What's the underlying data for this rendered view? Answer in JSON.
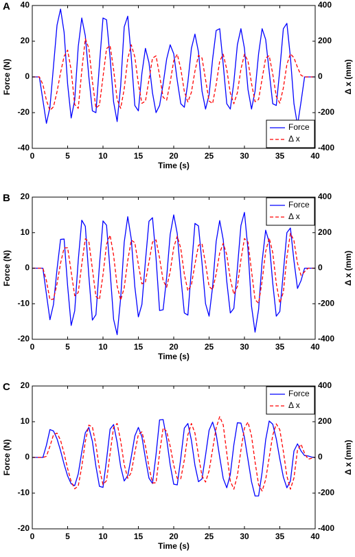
{
  "chart_data": [
    {
      "type": "line",
      "label": "A",
      "xlabel": "Time (s)",
      "ylabel": "Force (N)",
      "y2label": "Δ x (mm)",
      "xlim": [
        0,
        40
      ],
      "xticks": [
        0,
        5,
        10,
        15,
        20,
        25,
        30,
        35,
        40
      ],
      "ylim": [
        -40,
        40
      ],
      "yticks": [
        -40,
        -20,
        0,
        20,
        40
      ],
      "y2lim": [
        -400,
        400
      ],
      "y2ticks": [
        -400,
        -200,
        0,
        200,
        400
      ],
      "legend": "lower right",
      "x": [
        0,
        0.5,
        1,
        1.5,
        2,
        2.5,
        3,
        3.5,
        4,
        4.5,
        5,
        5.5,
        6,
        6.5,
        7,
        7.5,
        8,
        8.5,
        9,
        9.5,
        10,
        10.5,
        11,
        11.5,
        12,
        12.5,
        13,
        13.5,
        14,
        14.5,
        15,
        15.5,
        16,
        16.5,
        17,
        17.5,
        18,
        18.5,
        19,
        19.5,
        20,
        20.5,
        21,
        21.5,
        22,
        22.5,
        23,
        23.5,
        24,
        24.5,
        25,
        25.5,
        26,
        26.5,
        27,
        27.5,
        28,
        28.5,
        29,
        29.5,
        30,
        30.5,
        31,
        31.5,
        32,
        32.5,
        33,
        33.5,
        34,
        34.5,
        35,
        35.5,
        36,
        36.5,
        37,
        37.5,
        38,
        38.5,
        39,
        39.5,
        40
      ],
      "series": [
        {
          "name": "Force",
          "color": "#0000ff",
          "linestyle": "solid",
          "values": [
            0,
            0,
            0,
            -13,
            -26,
            -17,
            6,
            29,
            38,
            25,
            -4,
            -23,
            -13,
            17,
            33,
            23,
            0,
            -19,
            -20,
            7,
            33,
            32,
            11,
            -14,
            -25,
            -5,
            28,
            34,
            11,
            -16,
            -19,
            2,
            16,
            8,
            -9,
            -20,
            -16,
            -4,
            10,
            18,
            13,
            -2,
            -15,
            -17,
            -3,
            16,
            24,
            14,
            -8,
            -18,
            -10,
            10,
            26,
            27,
            7,
            -15,
            -18,
            -3,
            18,
            27,
            16,
            -7,
            -18,
            -8,
            13,
            27,
            21,
            3,
            -15,
            -16,
            4,
            27,
            30,
            11,
            -15,
            -27,
            -14,
            0,
            0,
            0,
            0
          ]
        },
        {
          "name": "Δ x",
          "color": "#ff0000",
          "linestyle": "dashed",
          "axis": "y2",
          "values": [
            0,
            0,
            0,
            -42,
            -131,
            -188,
            -167,
            -83,
            24,
            115,
            150,
            38,
            -155,
            -176,
            35,
            214,
            160,
            -25,
            -174,
            -158,
            0,
            158,
            176,
            41,
            -126,
            -176,
            -67,
            102,
            180,
            112,
            -37,
            -148,
            -136,
            -15,
            105,
            118,
            9,
            -114,
            -130,
            -31,
            91,
            127,
            45,
            -82,
            -140,
            -86,
            32,
            121,
            106,
            -15,
            -135,
            -149,
            -43,
            88,
            127,
            42,
            -90,
            -150,
            -88,
            43,
            127,
            89,
            -37,
            -139,
            -126,
            -10,
            106,
            119,
            17,
            -109,
            -147,
            -62,
            70,
            130,
            107,
            54,
            9,
            0,
            0,
            0,
            0
          ]
        }
      ]
    },
    {
      "type": "line",
      "label": "B",
      "xlabel": "Time (s)",
      "ylabel": "Force (N)",
      "y2label": "Δ x (mm)",
      "xlim": [
        0,
        40
      ],
      "xticks": [
        0,
        5,
        10,
        15,
        20,
        25,
        30,
        35,
        40
      ],
      "ylim": [
        -20,
        20
      ],
      "yticks": [
        -20,
        -10,
        0,
        10,
        20
      ],
      "y2lim": [
        -400,
        400
      ],
      "y2ticks": [
        -400,
        -200,
        0,
        200,
        400
      ],
      "legend": "upper right",
      "x": [
        0,
        0.5,
        1,
        1.5,
        2,
        2.5,
        3,
        3.5,
        4,
        4.5,
        5,
        5.5,
        6,
        6.5,
        7,
        7.5,
        8,
        8.5,
        9,
        9.5,
        10,
        10.5,
        11,
        11.5,
        12,
        12.5,
        13,
        13.5,
        14,
        14.5,
        15,
        15.5,
        16,
        16.5,
        17,
        17.5,
        18,
        18.5,
        19,
        19.5,
        20,
        20.5,
        21,
        21.5,
        22,
        22.5,
        23,
        23.5,
        24,
        24.5,
        25,
        25.5,
        26,
        26.5,
        27,
        27.5,
        28,
        28.5,
        29,
        29.5,
        30,
        30.5,
        31,
        31.5,
        32,
        32.5,
        33,
        33.5,
        34,
        34.5,
        35,
        35.5,
        36,
        36.5,
        37,
        37.5,
        38,
        38.5,
        39,
        39.5,
        40
      ],
      "series": [
        {
          "name": "Force",
          "color": "#0000ff",
          "linestyle": "solid",
          "values": [
            0,
            0,
            0,
            0,
            -7.3,
            -14.5,
            -10.2,
            -0.3,
            8.1,
            8.2,
            -5,
            -16.1,
            -12,
            2.2,
            13.5,
            11.8,
            -2.2,
            -14.6,
            -13.1,
            0.9,
            13.3,
            12.1,
            -0.7,
            -14.4,
            -18.7,
            -8.4,
            7.3,
            14.5,
            8.2,
            -5.2,
            -13.7,
            -10.2,
            2,
            13.2,
            14.2,
            2.9,
            -11.9,
            -11.7,
            -2.6,
            9.5,
            15,
            9.7,
            -2.4,
            -12.6,
            -13.2,
            -0.3,
            12.6,
            11.9,
            1.4,
            -10,
            -13.5,
            -5.2,
            7.5,
            13.4,
            8,
            -3.7,
            -12.6,
            -11.3,
            -0.1,
            12,
            15.7,
            5.3,
            -10.7,
            -18,
            -11.6,
            2,
            10.7,
            7.3,
            -4.2,
            -13.5,
            -12.2,
            -1.1,
            10,
            11.3,
            2.1,
            -5.7,
            -3.5,
            0,
            0,
            0,
            0
          ]
        },
        {
          "name": "Δ x",
          "color": "#ff0000",
          "linestyle": "dashed",
          "axis": "y2",
          "values": [
            0,
            0,
            0,
            0,
            -70,
            -177,
            -174,
            -88,
            28,
            114,
            115,
            -20,
            -155,
            -137,
            23,
            165,
            149,
            -5,
            -159,
            -176,
            -37,
            135,
            186,
            73,
            -100,
            -180,
            -110,
            43,
            158,
            144,
            21,
            -88,
            -77,
            35,
            147,
            159,
            57,
            -69,
            -107,
            -19,
            117,
            180,
            111,
            -34,
            -127,
            -94,
            22,
            129,
            138,
            25,
            -103,
            -121,
            -32,
            86,
            140,
            76,
            -60,
            -147,
            -102,
            47,
            167,
            147,
            -15,
            -177,
            -197,
            -72,
            94,
            170,
            88,
            -86,
            -196,
            -135,
            62,
            196,
            155,
            28,
            -40,
            -20,
            0,
            0,
            0
          ]
        }
      ]
    },
    {
      "type": "line",
      "label": "C",
      "xlabel": "Time (s)",
      "ylabel": "Force (N)",
      "y2label": "Δ x (mm)",
      "xlim": [
        0,
        40
      ],
      "xticks": [
        0,
        5,
        10,
        15,
        20,
        25,
        30,
        35,
        40
      ],
      "ylim": [
        -20,
        20
      ],
      "yticks": [
        -20,
        -10,
        0,
        10,
        20
      ],
      "y2lim": [
        -400,
        400
      ],
      "y2ticks": [
        -400,
        -200,
        0,
        200,
        400
      ],
      "legend": "upper right",
      "x": [
        0,
        0.5,
        1,
        1.5,
        2,
        2.5,
        3,
        3.5,
        4,
        4.5,
        5,
        5.5,
        6,
        6.5,
        7,
        7.5,
        8,
        8.5,
        9,
        9.5,
        10,
        10.5,
        11,
        11.5,
        12,
        12.5,
        13,
        13.5,
        14,
        14.5,
        15,
        15.5,
        16,
        16.5,
        17,
        17.5,
        18,
        18.5,
        19,
        19.5,
        20,
        20.5,
        21,
        21.5,
        22,
        22.5,
        23,
        23.5,
        24,
        24.5,
        25,
        25.5,
        26,
        26.5,
        27,
        27.5,
        28,
        28.5,
        29,
        29.5,
        30,
        30.5,
        31,
        31.5,
        32,
        32.5,
        33,
        33.5,
        34,
        34.5,
        35,
        35.5,
        36,
        36.5,
        37,
        37.5,
        38,
        38.5,
        39,
        39.5,
        40
      ],
      "series": [
        {
          "name": "Force",
          "color": "#0000ff",
          "linestyle": "solid",
          "values": [
            0,
            0,
            0,
            0,
            3.4,
            7.8,
            7.4,
            5.2,
            1.9,
            -1.9,
            -5.2,
            -7.4,
            -7.9,
            -4.6,
            1.5,
            6.9,
            8.4,
            4.5,
            -2.5,
            -8.1,
            -8.4,
            -0.7,
            7.9,
            9.2,
            4.2,
            -2.6,
            -6.6,
            -5.1,
            0.2,
            6,
            8.4,
            5.8,
            -0.3,
            -5.8,
            -7.3,
            0.8,
            10.5,
            10.6,
            5.2,
            -2.1,
            -7.5,
            -7.7,
            -0.2,
            8.2,
            9.5,
            4.8,
            -2.2,
            -6.8,
            -6,
            0.6,
            7.6,
            9.9,
            6.5,
            0.1,
            -5.9,
            -8.5,
            -4.8,
            3.5,
            9.7,
            9.6,
            5.6,
            -0.6,
            -6.8,
            -10.8,
            -10.8,
            -4.1,
            4.9,
            10.2,
            9.3,
            5.2,
            -0.4,
            -5.5,
            -8.5,
            -6.6,
            1.8,
            3.8,
            1.8,
            0.5,
            0.4,
            0.1,
            0
          ]
        },
        {
          "name": "Δ x",
          "color": "#ff0000",
          "linestyle": "dashed",
          "axis": "y2",
          "values": [
            0,
            0,
            0,
            0,
            6,
            63,
            127,
            136,
            96,
            23,
            -63,
            -135,
            -176,
            -160,
            -52,
            89,
            181,
            171,
            69,
            -64,
            -152,
            -130,
            20,
            169,
            190,
            92,
            -40,
            -117,
            -85,
            27,
            129,
            143,
            65,
            -53,
            -143,
            -142,
            25,
            165,
            146,
            63,
            -43,
            -117,
            -119,
            -14,
            126,
            190,
            136,
            11,
            -104,
            -138,
            -75,
            45,
            165,
            228,
            182,
            25,
            -132,
            -178,
            -102,
            40,
            164,
            198,
            120,
            -25,
            -153,
            -188,
            -124,
            0,
            124,
            188,
            155,
            34,
            -104,
            -178,
            -115,
            42,
            74,
            23,
            -10,
            -5,
            0
          ]
        }
      ]
    }
  ]
}
